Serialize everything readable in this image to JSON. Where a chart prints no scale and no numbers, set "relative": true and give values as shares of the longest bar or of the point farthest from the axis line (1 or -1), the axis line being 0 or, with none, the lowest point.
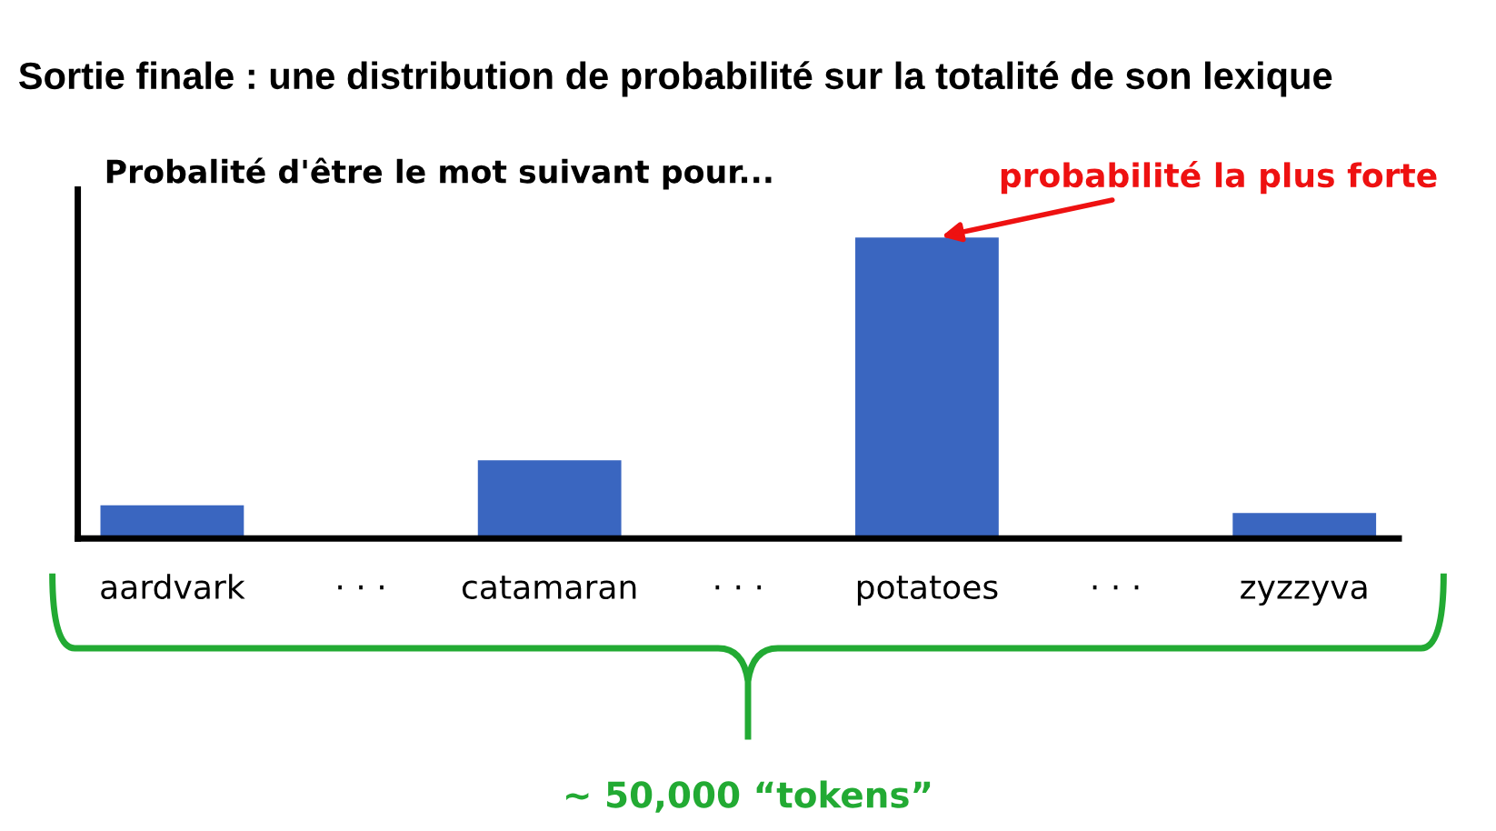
{
  "chart_data": {
    "type": "bar",
    "relative": true,
    "title": "Sortie finale : une distribution de probabilité sur la totalité de son lexique",
    "subtitle": "Probalité d'être le mot suivant pour...",
    "categories": [
      "aardvark",
      "· · ·",
      "catamaran",
      "· · ·",
      "potatoes",
      "· · ·",
      "zyzzyva"
    ],
    "values": [
      0.11,
      null,
      0.26,
      null,
      1,
      null,
      0.085
    ],
    "color": "#3a66c0",
    "annotations": [
      {
        "text": "probabilité la plus forte",
        "x": "potatoes",
        "y": 1
      },
      "~ 50,000 “tokens”"
    ]
  }
}
